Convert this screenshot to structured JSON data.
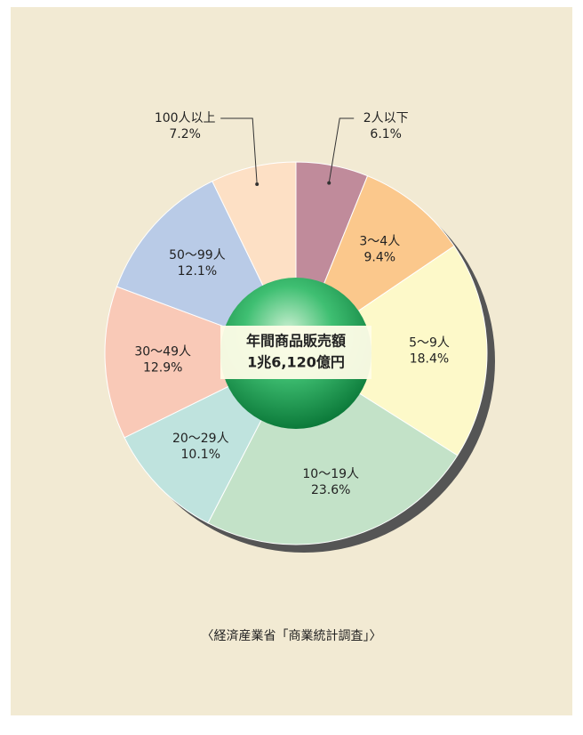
{
  "chart_data": {
    "type": "pie",
    "categories": [
      "2人以下",
      "3〜4人",
      "5〜9人",
      "10〜19人",
      "20〜29人",
      "30〜49人",
      "50〜99人",
      "100人以上"
    ],
    "values": [
      6.1,
      9.4,
      18.4,
      23.6,
      10.1,
      12.9,
      12.1,
      7.2
    ],
    "value_labels": [
      "6.1%",
      "9.4%",
      "18.4%",
      "23.6%",
      "10.1%",
      "12.9%",
      "12.1%",
      "7.2%"
    ],
    "colors": [
      "#c08b9b",
      "#fbc88c",
      "#fdf9c9",
      "#c3e2c8",
      "#bfe3de",
      "#f9c9b7",
      "#b9cbe7",
      "#fde0c5"
    ],
    "center_label": [
      "年間商品販売額",
      "1兆6,120億円"
    ],
    "source": "〈経済産業省「商業統計調査」〉"
  }
}
